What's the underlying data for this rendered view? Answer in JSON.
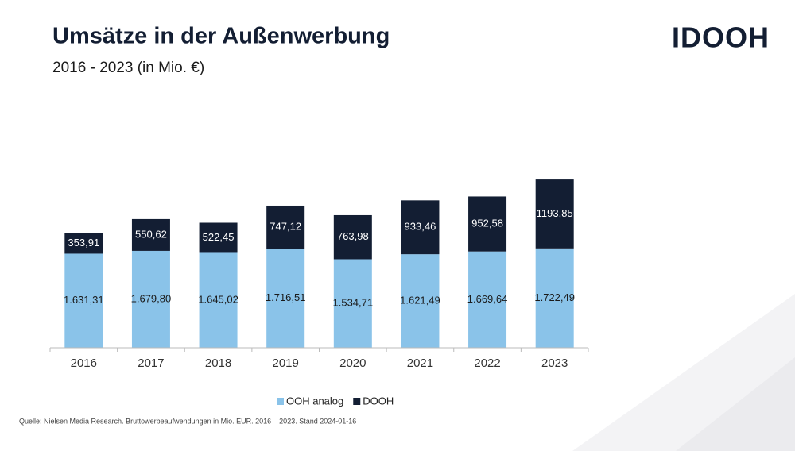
{
  "chart_data": {
    "type": "stacked_bar",
    "title": "Umsätze in der Außenwerbung",
    "subtitle": "2016 - 2023 (in Mio. €)",
    "logo": "IDOOH",
    "source": "Quelle: Nielsen Media Research. Bruttowerbeaufwendungen in Mio. EUR. 2016 – 2023. Stand 2024-01-16",
    "categories": [
      "2016",
      "2017",
      "2018",
      "2019",
      "2020",
      "2021",
      "2022",
      "2023"
    ],
    "series": [
      {
        "name": "OOH analog",
        "color": "#8ac3e9",
        "label_color": "#1a1a1a",
        "values": [
          1631.31,
          1679.8,
          1645.02,
          1716.51,
          1534.71,
          1621.49,
          1669.64,
          1722.49
        ],
        "value_labels": [
          "1.631,31",
          "1.679,80",
          "1.645,02",
          "1.716,51",
          "1.534,71",
          "1.621,49",
          "1.669,64",
          "1.722,49"
        ]
      },
      {
        "name": "DOOH",
        "color": "#131e33",
        "label_color": "#ffffff",
        "values": [
          353.91,
          550.62,
          522.45,
          747.12,
          763.98,
          933.46,
          952.58,
          1193.85
        ],
        "value_labels": [
          "353,91",
          "550,62",
          "522,45",
          "747,12",
          "763,98",
          "933,46",
          "952,58",
          "1193,85"
        ]
      }
    ],
    "ylim": [
      0,
      3000
    ],
    "legend": "bottom"
  }
}
